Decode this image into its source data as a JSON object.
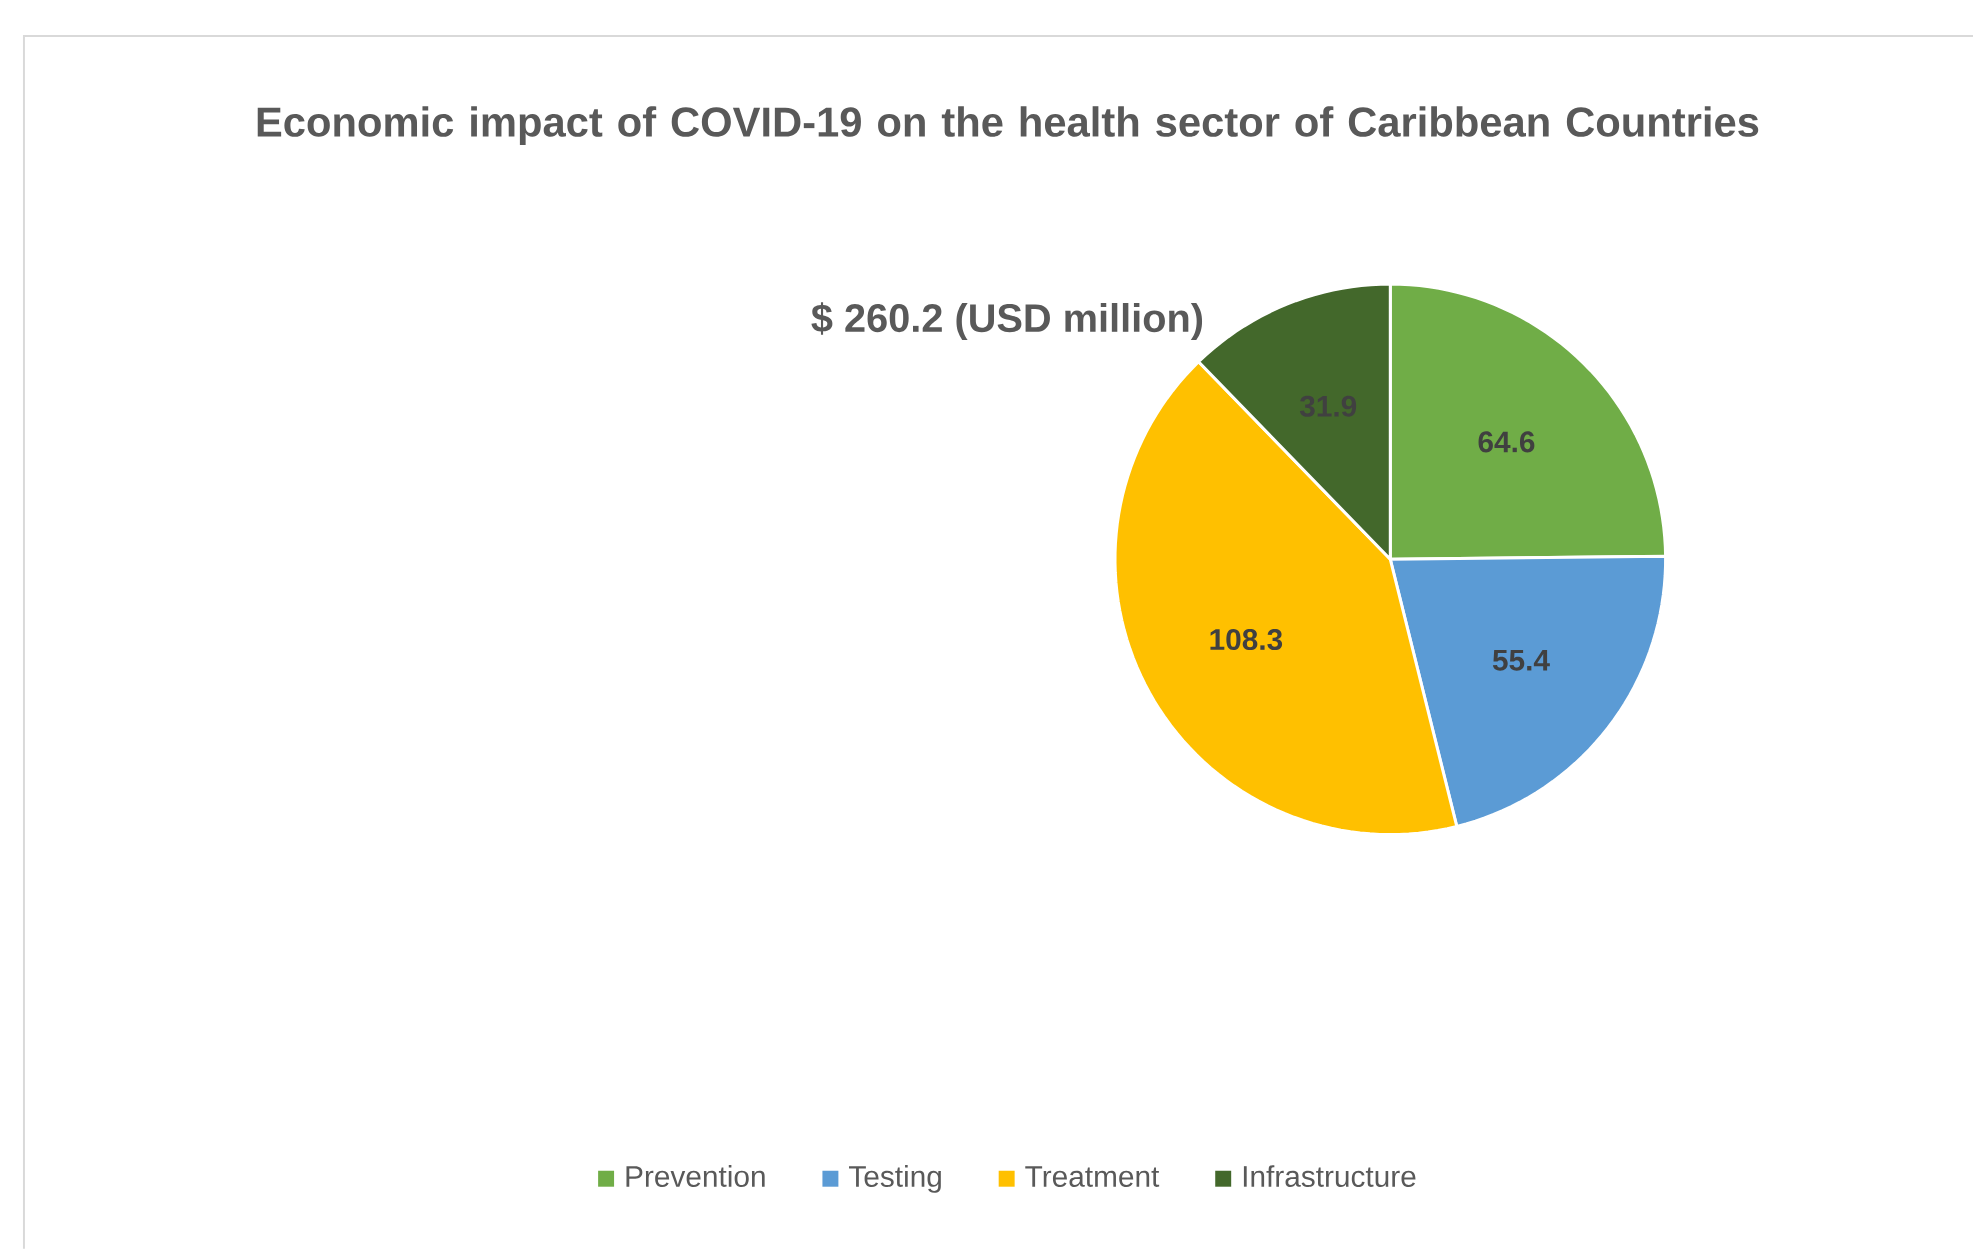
{
  "chart_data": {
    "type": "pie",
    "title": "Economic impact of COVID-19 on the health sector of Caribbean Countries",
    "subtitle": "$ 260.2 (USD million)",
    "categories": [
      "Prevention",
      "Testing",
      "Treatment",
      "Infrastructure"
    ],
    "values": [
      64.6,
      55.4,
      108.3,
      31.9
    ],
    "colors": [
      "#70ad47",
      "#5b9bd5",
      "#ffc000",
      "#43682b"
    ],
    "data_labels": true,
    "legend": "bottom"
  }
}
